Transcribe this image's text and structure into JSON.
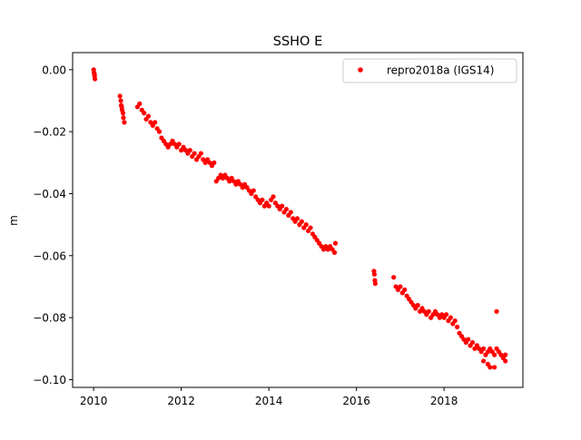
{
  "chart_data": {
    "type": "scatter",
    "title": "SSHO E",
    "xlabel": "",
    "ylabel": "m",
    "xlim": [
      2009.52,
      2019.8
    ],
    "ylim": [
      -0.1025,
      0.0055
    ],
    "xticks": [
      2010,
      2012,
      2014,
      2016,
      2018
    ],
    "xtick_labels": [
      "2010",
      "2012",
      "2014",
      "2016",
      "2018"
    ],
    "yticks": [
      0.0,
      -0.02,
      -0.04,
      -0.06,
      -0.08,
      -0.1
    ],
    "ytick_labels": [
      "0.00",
      "−0.02",
      "−0.04",
      "−0.06",
      "−0.08",
      "−0.10"
    ],
    "grid": false,
    "legend_position": "upper right",
    "marker_color": "#ff0000",
    "series": [
      {
        "name": "repro2018a (IGS14)",
        "color": "#ff0000",
        "points": [
          [
            2010.0,
            0.0
          ],
          [
            2010.01,
            -0.001
          ],
          [
            2010.02,
            -0.002
          ],
          [
            2010.03,
            -0.003
          ],
          [
            2010.02,
            -0.0015
          ],
          [
            2010.6,
            -0.0085
          ],
          [
            2010.62,
            -0.01
          ],
          [
            2010.63,
            -0.0115
          ],
          [
            2010.65,
            -0.013
          ],
          [
            2010.67,
            -0.014
          ],
          [
            2010.68,
            -0.0155
          ],
          [
            2010.7,
            -0.017
          ],
          [
            2010.64,
            -0.012
          ],
          [
            2011.0,
            -0.012
          ],
          [
            2011.05,
            -0.011
          ],
          [
            2011.1,
            -0.013
          ],
          [
            2011.15,
            -0.014
          ],
          [
            2011.2,
            -0.016
          ],
          [
            2011.25,
            -0.015
          ],
          [
            2011.3,
            -0.017
          ],
          [
            2011.35,
            -0.018
          ],
          [
            2011.4,
            -0.017
          ],
          [
            2011.45,
            -0.019
          ],
          [
            2011.5,
            -0.02
          ],
          [
            2011.55,
            -0.022
          ],
          [
            2011.6,
            -0.023
          ],
          [
            2011.65,
            -0.024
          ],
          [
            2011.7,
            -0.025
          ],
          [
            2011.75,
            -0.024
          ],
          [
            2011.8,
            -0.023
          ],
          [
            2011.85,
            -0.024
          ],
          [
            2011.9,
            -0.025
          ],
          [
            2011.95,
            -0.024
          ],
          [
            2012.0,
            -0.026
          ],
          [
            2012.05,
            -0.025
          ],
          [
            2012.1,
            -0.026
          ],
          [
            2012.15,
            -0.027
          ],
          [
            2012.2,
            -0.026
          ],
          [
            2012.25,
            -0.028
          ],
          [
            2012.3,
            -0.027
          ],
          [
            2012.35,
            -0.029
          ],
          [
            2012.4,
            -0.028
          ],
          [
            2012.45,
            -0.027
          ],
          [
            2012.5,
            -0.029
          ],
          [
            2012.55,
            -0.03
          ],
          [
            2012.6,
            -0.029
          ],
          [
            2012.65,
            -0.03
          ],
          [
            2012.7,
            -0.031
          ],
          [
            2012.75,
            -0.03
          ],
          [
            2012.8,
            -0.036
          ],
          [
            2012.85,
            -0.035
          ],
          [
            2012.9,
            -0.034
          ],
          [
            2012.95,
            -0.035
          ],
          [
            2013.0,
            -0.034
          ],
          [
            2013.05,
            -0.035
          ],
          [
            2013.1,
            -0.036
          ],
          [
            2013.15,
            -0.035
          ],
          [
            2013.2,
            -0.036
          ],
          [
            2013.25,
            -0.037
          ],
          [
            2013.3,
            -0.036
          ],
          [
            2013.35,
            -0.037
          ],
          [
            2013.4,
            -0.038
          ],
          [
            2013.45,
            -0.037
          ],
          [
            2013.5,
            -0.038
          ],
          [
            2013.55,
            -0.039
          ],
          [
            2013.6,
            -0.04
          ],
          [
            2013.65,
            -0.039
          ],
          [
            2013.7,
            -0.041
          ],
          [
            2013.75,
            -0.042
          ],
          [
            2013.8,
            -0.043
          ],
          [
            2013.85,
            -0.042
          ],
          [
            2013.9,
            -0.044
          ],
          [
            2013.95,
            -0.043
          ],
          [
            2014.0,
            -0.044
          ],
          [
            2014.05,
            -0.042
          ],
          [
            2014.1,
            -0.041
          ],
          [
            2014.15,
            -0.043
          ],
          [
            2014.2,
            -0.044
          ],
          [
            2014.25,
            -0.045
          ],
          [
            2014.3,
            -0.044
          ],
          [
            2014.35,
            -0.046
          ],
          [
            2014.4,
            -0.045
          ],
          [
            2014.45,
            -0.047
          ],
          [
            2014.5,
            -0.046
          ],
          [
            2014.55,
            -0.048
          ],
          [
            2014.6,
            -0.049
          ],
          [
            2014.65,
            -0.048
          ],
          [
            2014.7,
            -0.05
          ],
          [
            2014.75,
            -0.049
          ],
          [
            2014.8,
            -0.051
          ],
          [
            2014.85,
            -0.05
          ],
          [
            2014.9,
            -0.052
          ],
          [
            2014.95,
            -0.051
          ],
          [
            2015.0,
            -0.053
          ],
          [
            2015.05,
            -0.054
          ],
          [
            2015.1,
            -0.055
          ],
          [
            2015.15,
            -0.056
          ],
          [
            2015.2,
            -0.057
          ],
          [
            2015.25,
            -0.058
          ],
          [
            2015.3,
            -0.057
          ],
          [
            2015.35,
            -0.058
          ],
          [
            2015.4,
            -0.057
          ],
          [
            2015.45,
            -0.058
          ],
          [
            2015.5,
            -0.059
          ],
          [
            2015.52,
            -0.056
          ],
          [
            2016.4,
            -0.065
          ],
          [
            2016.41,
            -0.066
          ],
          [
            2016.42,
            -0.068
          ],
          [
            2016.43,
            -0.069
          ],
          [
            2016.85,
            -0.067
          ],
          [
            2016.9,
            -0.07
          ],
          [
            2016.95,
            -0.071
          ],
          [
            2017.0,
            -0.07
          ],
          [
            2017.05,
            -0.072
          ],
          [
            2017.1,
            -0.071
          ],
          [
            2017.15,
            -0.073
          ],
          [
            2017.2,
            -0.074
          ],
          [
            2017.25,
            -0.075
          ],
          [
            2017.3,
            -0.076
          ],
          [
            2017.35,
            -0.077
          ],
          [
            2017.4,
            -0.076
          ],
          [
            2017.45,
            -0.078
          ],
          [
            2017.5,
            -0.077
          ],
          [
            2017.55,
            -0.078
          ],
          [
            2017.6,
            -0.079
          ],
          [
            2017.65,
            -0.078
          ],
          [
            2017.7,
            -0.08
          ],
          [
            2017.75,
            -0.079
          ],
          [
            2017.8,
            -0.078
          ],
          [
            2017.85,
            -0.079
          ],
          [
            2017.9,
            -0.08
          ],
          [
            2017.95,
            -0.079
          ],
          [
            2018.0,
            -0.08
          ],
          [
            2018.05,
            -0.079
          ],
          [
            2018.1,
            -0.081
          ],
          [
            2018.15,
            -0.08
          ],
          [
            2018.2,
            -0.082
          ],
          [
            2018.25,
            -0.081
          ],
          [
            2018.3,
            -0.083
          ],
          [
            2018.35,
            -0.085
          ],
          [
            2018.4,
            -0.086
          ],
          [
            2018.45,
            -0.087
          ],
          [
            2018.5,
            -0.088
          ],
          [
            2018.55,
            -0.087
          ],
          [
            2018.6,
            -0.089
          ],
          [
            2018.65,
            -0.088
          ],
          [
            2018.7,
            -0.09
          ],
          [
            2018.75,
            -0.089
          ],
          [
            2018.8,
            -0.09
          ],
          [
            2018.85,
            -0.091
          ],
          [
            2018.9,
            -0.09
          ],
          [
            2018.95,
            -0.092
          ],
          [
            2019.0,
            -0.091
          ],
          [
            2019.05,
            -0.09
          ],
          [
            2019.1,
            -0.091
          ],
          [
            2019.15,
            -0.092
          ],
          [
            2019.2,
            -0.09
          ],
          [
            2019.25,
            -0.091
          ],
          [
            2019.3,
            -0.092
          ],
          [
            2019.35,
            -0.093
          ],
          [
            2019.4,
            -0.092
          ],
          [
            2018.9,
            -0.094
          ],
          [
            2019.0,
            -0.095
          ],
          [
            2019.05,
            -0.096
          ],
          [
            2019.15,
            -0.096
          ],
          [
            2019.2,
            -0.078
          ],
          [
            2019.4,
            -0.094
          ]
        ]
      }
    ]
  }
}
